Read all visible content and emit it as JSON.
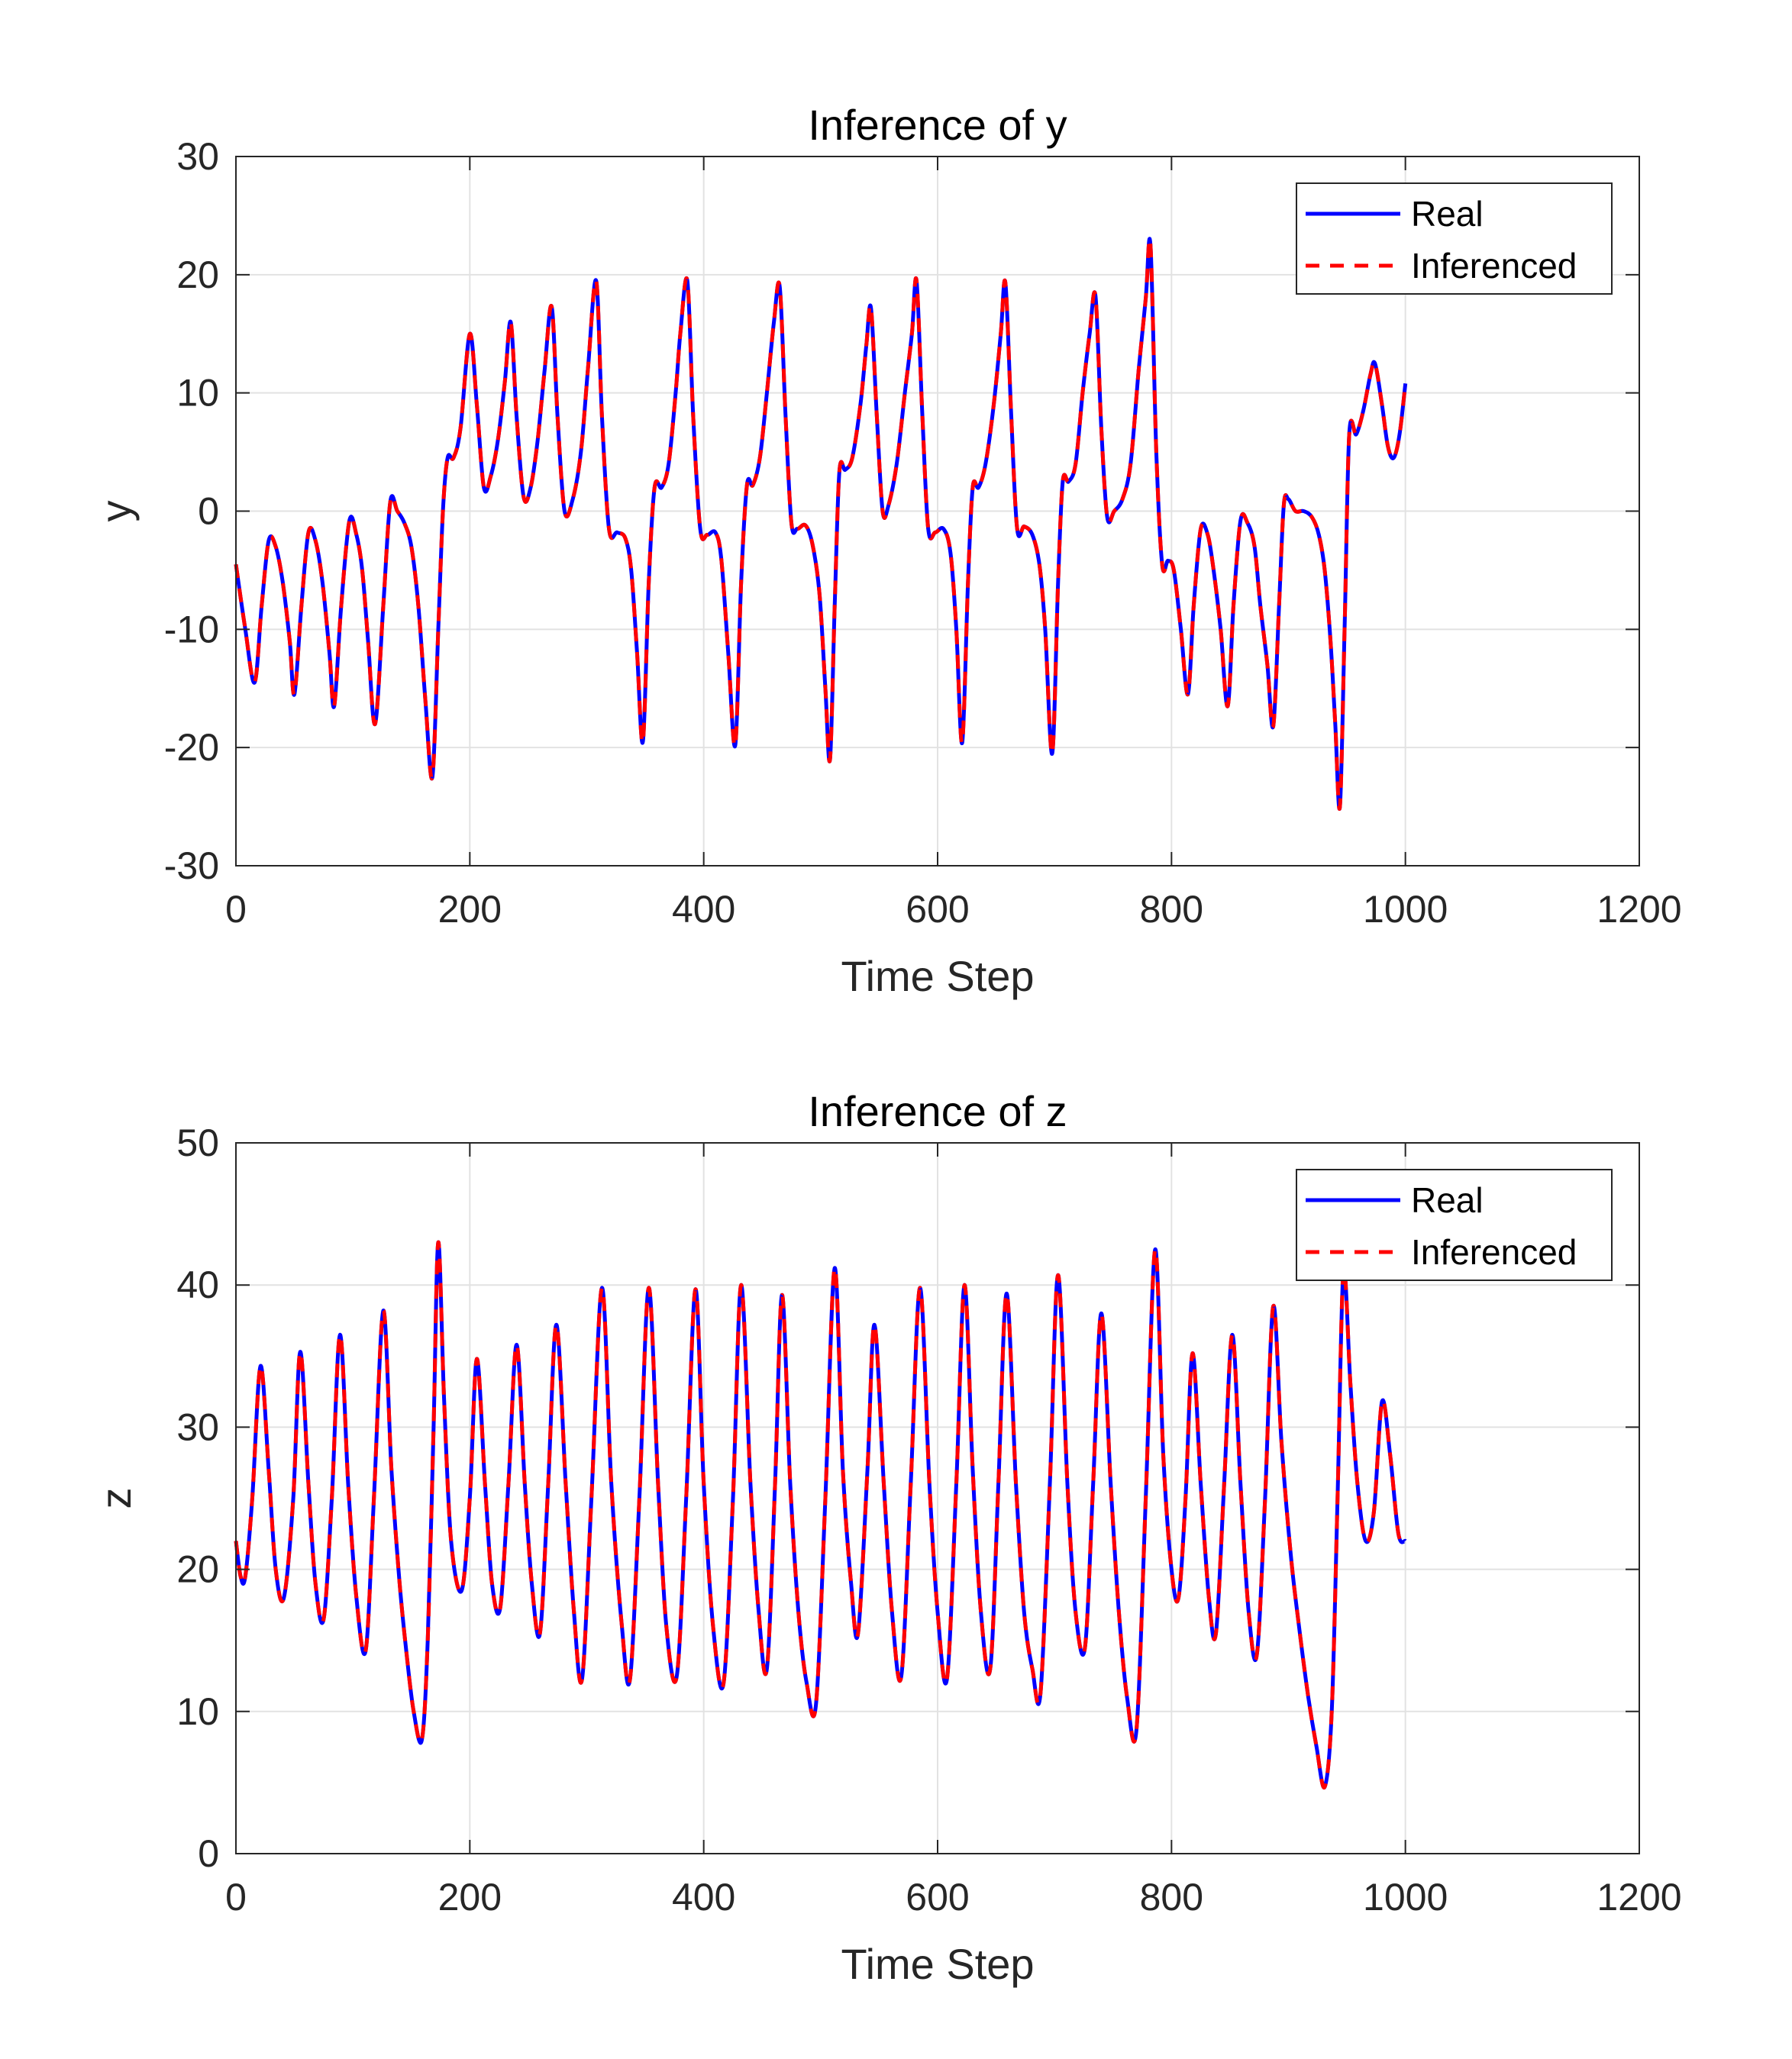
{
  "colors": {
    "real": "#0000ff",
    "inferenced": "#ff0000",
    "grid": "#e2e2e2",
    "axis": "#262626",
    "background": "#ffffff"
  },
  "chart_data": [
    {
      "type": "line",
      "title": "Inference of y",
      "xlabel": "Time Step",
      "ylabel": "y",
      "xlim": [
        0,
        1200
      ],
      "ylim": [
        -30,
        30
      ],
      "xticks": [
        "0",
        "200",
        "400",
        "600",
        "800",
        "1000",
        "1200"
      ],
      "yticks": [
        "-30",
        "-20",
        "-10",
        "0",
        "10",
        "20",
        "30"
      ],
      "grid": true,
      "legend": {
        "position": "top-right",
        "entries": [
          "Real",
          "Inferenced"
        ]
      },
      "keypoints": [
        [
          0,
          -4.5
        ],
        [
          8,
          -10
        ],
        [
          16,
          -14.5
        ],
        [
          22,
          -8
        ],
        [
          28,
          -2.5
        ],
        [
          34,
          -3
        ],
        [
          40,
          -6
        ],
        [
          46,
          -11
        ],
        [
          50,
          -15.5
        ],
        [
          56,
          -8
        ],
        [
          62,
          -1.8
        ],
        [
          68,
          -2.5
        ],
        [
          74,
          -6
        ],
        [
          80,
          -12
        ],
        [
          84,
          -16.5
        ],
        [
          90,
          -8
        ],
        [
          97,
          -0.8
        ],
        [
          103,
          -2
        ],
        [
          108,
          -5
        ],
        [
          113,
          -11
        ],
        [
          119,
          -18
        ],
        [
          126,
          -8
        ],
        [
          132,
          0.8
        ],
        [
          138,
          0
        ],
        [
          144,
          -1
        ],
        [
          150,
          -3
        ],
        [
          156,
          -8
        ],
        [
          162,
          -16
        ],
        [
          168,
          -22.5
        ],
        [
          173,
          -10
        ],
        [
          177,
          0
        ],
        [
          181,
          4.5
        ],
        [
          186,
          4.5
        ],
        [
          192,
          7
        ],
        [
          200,
          15
        ],
        [
          206,
          9
        ],
        [
          212,
          2
        ],
        [
          218,
          3
        ],
        [
          224,
          6
        ],
        [
          230,
          11
        ],
        [
          235,
          16
        ],
        [
          240,
          8
        ],
        [
          246,
          1.2
        ],
        [
          252,
          2
        ],
        [
          258,
          6
        ],
        [
          264,
          12
        ],
        [
          270,
          17.3
        ],
        [
          275,
          8
        ],
        [
          281,
          0
        ],
        [
          288,
          1
        ],
        [
          295,
          5
        ],
        [
          301,
          12
        ],
        [
          308,
          19.5
        ],
        [
          313,
          8
        ],
        [
          319,
          -1.5
        ],
        [
          326,
          -1.8
        ],
        [
          333,
          -2.3
        ],
        [
          338,
          -5
        ],
        [
          343,
          -12
        ],
        [
          348,
          -19.5
        ],
        [
          353,
          -6
        ],
        [
          358,
          2
        ],
        [
          364,
          2
        ],
        [
          370,
          4
        ],
        [
          376,
          10
        ],
        [
          380,
          15
        ],
        [
          386,
          19.5
        ],
        [
          391,
          8
        ],
        [
          397,
          -1.5
        ],
        [
          403,
          -2
        ],
        [
          410,
          -1.8
        ],
        [
          415,
          -4
        ],
        [
          421,
          -12
        ],
        [
          427,
          -19.8
        ],
        [
          432,
          -6
        ],
        [
          437,
          2.2
        ],
        [
          442,
          2.2
        ],
        [
          448,
          4.5
        ],
        [
          454,
          10
        ],
        [
          460,
          16
        ],
        [
          465,
          19
        ],
        [
          470,
          8
        ],
        [
          475,
          -1
        ],
        [
          480,
          -1.5
        ],
        [
          487,
          -1.2
        ],
        [
          493,
          -2.8
        ],
        [
          499,
          -7
        ],
        [
          504,
          -15
        ],
        [
          508,
          -21
        ],
        [
          512,
          -8
        ],
        [
          516,
          3.3
        ],
        [
          521,
          3.5
        ],
        [
          527,
          4.5
        ],
        [
          534,
          9
        ],
        [
          539,
          14
        ],
        [
          543,
          17.2
        ],
        [
          548,
          8
        ],
        [
          553,
          0
        ],
        [
          558,
          0.5
        ],
        [
          565,
          4
        ],
        [
          572,
          10
        ],
        [
          578,
          15
        ],
        [
          582,
          19.5
        ],
        [
          587,
          8
        ],
        [
          592,
          -1.5
        ],
        [
          598,
          -1.8
        ],
        [
          605,
          -1.5
        ],
        [
          611,
          -3.5
        ],
        [
          616,
          -10
        ],
        [
          621,
          -19.6
        ],
        [
          626,
          -6
        ],
        [
          630,
          2
        ],
        [
          635,
          2
        ],
        [
          641,
          4
        ],
        [
          648,
          9
        ],
        [
          654,
          15
        ],
        [
          658,
          19.3
        ],
        [
          663,
          8
        ],
        [
          668,
          -1.5
        ],
        [
          674,
          -1.3
        ],
        [
          681,
          -2
        ],
        [
          687,
          -4.5
        ],
        [
          692,
          -10
        ],
        [
          698,
          -20.5
        ],
        [
          703,
          -6
        ],
        [
          707,
          2.5
        ],
        [
          712,
          2.5
        ],
        [
          718,
          4
        ],
        [
          724,
          10
        ],
        [
          730,
          15
        ],
        [
          735,
          18.2
        ],
        [
          740,
          7
        ],
        [
          745,
          -0.5
        ],
        [
          751,
          0
        ],
        [
          758,
          1
        ],
        [
          765,
          4
        ],
        [
          772,
          12
        ],
        [
          778,
          18
        ],
        [
          782,
          22.5
        ],
        [
          787,
          5
        ],
        [
          792,
          -4.5
        ],
        [
          797,
          -4.2
        ],
        [
          802,
          -5
        ],
        [
          808,
          -10
        ],
        [
          814,
          -15.5
        ],
        [
          819,
          -8
        ],
        [
          825,
          -1.5
        ],
        [
          831,
          -2
        ],
        [
          836,
          -5
        ],
        [
          842,
          -10
        ],
        [
          848,
          -16.5
        ],
        [
          853,
          -8
        ],
        [
          859,
          -0.8
        ],
        [
          865,
          -1
        ],
        [
          871,
          -3
        ],
        [
          876,
          -8
        ],
        [
          882,
          -13
        ],
        [
          887,
          -18.2
        ],
        [
          892,
          -8
        ],
        [
          896,
          0.5
        ],
        [
          900,
          1
        ],
        [
          906,
          0
        ],
        [
          913,
          0
        ],
        [
          920,
          -0.5
        ],
        [
          926,
          -2
        ],
        [
          931,
          -5
        ],
        [
          936,
          -11
        ],
        [
          940,
          -18
        ],
        [
          944,
          -25
        ],
        [
          948,
          -10
        ],
        [
          952,
          6.5
        ],
        [
          958,
          6.5
        ],
        [
          964,
          8.5
        ],
        [
          970,
          11.5
        ],
        [
          974,
          12.5
        ],
        [
          980,
          9
        ],
        [
          985,
          5.5
        ],
        [
          990,
          4.5
        ],
        [
          995,
          6.5
        ],
        [
          1000,
          10.8
        ]
      ]
    },
    {
      "type": "line",
      "title": "Inference of z",
      "xlabel": "Time Step",
      "ylabel": "z",
      "xlim": [
        0,
        1200
      ],
      "ylim": [
        0,
        50
      ],
      "xticks": [
        "0",
        "200",
        "400",
        "600",
        "800",
        "1000",
        "1200"
      ],
      "yticks": [
        "0",
        "10",
        "20",
        "30",
        "40",
        "50"
      ],
      "grid": true,
      "legend": {
        "position": "top-right",
        "entries": [
          "Real",
          "Inferenced"
        ]
      },
      "keypoints": [
        [
          0,
          22
        ],
        [
          4,
          19.5
        ],
        [
          8,
          19.5
        ],
        [
          14,
          25
        ],
        [
          21,
          34.3
        ],
        [
          28,
          27
        ],
        [
          34,
          20
        ],
        [
          41,
          18
        ],
        [
          49,
          25
        ],
        [
          55,
          35.3
        ],
        [
          62,
          26
        ],
        [
          68,
          19
        ],
        [
          75,
          16.5
        ],
        [
          82,
          25
        ],
        [
          89,
          36.5
        ],
        [
          96,
          26
        ],
        [
          103,
          18
        ],
        [
          111,
          14.3
        ],
        [
          118,
          25
        ],
        [
          126,
          38.2
        ],
        [
          133,
          27
        ],
        [
          140,
          19
        ],
        [
          146,
          14
        ],
        [
          152,
          10
        ],
        [
          159,
          8
        ],
        [
          164,
          15
        ],
        [
          169,
          30
        ],
        [
          173,
          43
        ],
        [
          178,
          32
        ],
        [
          184,
          22
        ],
        [
          193,
          18.5
        ],
        [
          200,
          25
        ],
        [
          206,
          34.8
        ],
        [
          213,
          26
        ],
        [
          219,
          19
        ],
        [
          226,
          17.3
        ],
        [
          233,
          26
        ],
        [
          240,
          35.8
        ],
        [
          247,
          26
        ],
        [
          253,
          19
        ],
        [
          260,
          15.5
        ],
        [
          267,
          26
        ],
        [
          274,
          37.2
        ],
        [
          282,
          26
        ],
        [
          289,
          17
        ],
        [
          296,
          12.3
        ],
        [
          304,
          25
        ],
        [
          313,
          39.8
        ],
        [
          321,
          26
        ],
        [
          330,
          16
        ],
        [
          337,
          12.3
        ],
        [
          345,
          25
        ],
        [
          353,
          39.8
        ],
        [
          361,
          26
        ],
        [
          368,
          16
        ],
        [
          377,
          12.5
        ],
        [
          385,
          25
        ],
        [
          393,
          39.7
        ],
        [
          400,
          26
        ],
        [
          408,
          16
        ],
        [
          417,
          12
        ],
        [
          425,
          25
        ],
        [
          432,
          40
        ],
        [
          440,
          26
        ],
        [
          447,
          17
        ],
        [
          454,
          13
        ],
        [
          461,
          26
        ],
        [
          467,
          39.3
        ],
        [
          474,
          26
        ],
        [
          481,
          17
        ],
        [
          488,
          12
        ],
        [
          496,
          10.5
        ],
        [
          504,
          25
        ],
        [
          512,
          41.2
        ],
        [
          519,
          27
        ],
        [
          526,
          19
        ],
        [
          532,
          15.5
        ],
        [
          540,
          27
        ],
        [
          546,
          37.2
        ],
        [
          554,
          26
        ],
        [
          561,
          17
        ],
        [
          569,
          12.5
        ],
        [
          577,
          26
        ],
        [
          585,
          39.8
        ],
        [
          593,
          26
        ],
        [
          600,
          17
        ],
        [
          608,
          12.3
        ],
        [
          616,
          26
        ],
        [
          623,
          40
        ],
        [
          630,
          27
        ],
        [
          637,
          17
        ],
        [
          645,
          13
        ],
        [
          652,
          26
        ],
        [
          659,
          39.4
        ],
        [
          667,
          26
        ],
        [
          674,
          17
        ],
        [
          681,
          13
        ],
        [
          688,
          11.3
        ],
        [
          696,
          26
        ],
        [
          703,
          40.7
        ],
        [
          711,
          26
        ],
        [
          718,
          17
        ],
        [
          726,
          14.5
        ],
        [
          733,
          26
        ],
        [
          740,
          38
        ],
        [
          748,
          26
        ],
        [
          755,
          17
        ],
        [
          762,
          11
        ],
        [
          770,
          8.7
        ],
        [
          778,
          25
        ],
        [
          786,
          42.5
        ],
        [
          793,
          28
        ],
        [
          800,
          20
        ],
        [
          806,
          18
        ],
        [
          812,
          25
        ],
        [
          818,
          35.2
        ],
        [
          825,
          26
        ],
        [
          832,
          18
        ],
        [
          838,
          15.5
        ],
        [
          845,
          26
        ],
        [
          852,
          36.5
        ],
        [
          859,
          26
        ],
        [
          866,
          17
        ],
        [
          873,
          14
        ],
        [
          880,
          25
        ],
        [
          887,
          38.5
        ],
        [
          894,
          29
        ],
        [
          902,
          21
        ],
        [
          909,
          16
        ],
        [
          917,
          11
        ],
        [
          924,
          7.5
        ],
        [
          931,
          4.7
        ],
        [
          937,
          10
        ],
        [
          942,
          25
        ],
        [
          947,
          41
        ],
        [
          953,
          33
        ],
        [
          959,
          26
        ],
        [
          966,
          22
        ],
        [
          973,
          24
        ],
        [
          980,
          31.8
        ],
        [
          987,
          28
        ],
        [
          994,
          22.5
        ],
        [
          1000,
          22
        ]
      ]
    }
  ]
}
